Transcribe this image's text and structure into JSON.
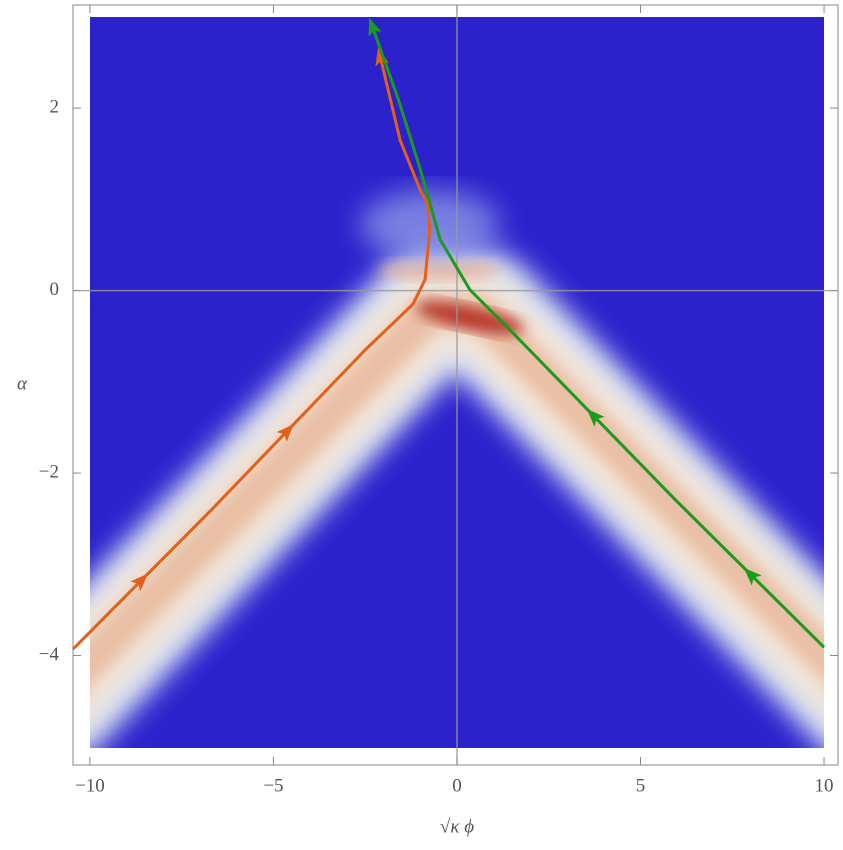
{
  "chart_data": {
    "type": "line",
    "x_label": "√κ ϕ",
    "y_label": "α",
    "xlim": [
      -10.46,
      10.38
    ],
    "ylim": [
      -5.2,
      3.13
    ],
    "xticks": [
      {
        "value": -10,
        "label": "−10"
      },
      {
        "value": -5,
        "label": "−5"
      },
      0,
      5,
      10
    ],
    "yticks": [
      {
        "value": -4,
        "label": "−4"
      },
      {
        "value": -2,
        "label": "−2"
      },
      0,
      2
    ],
    "series": [
      {
        "color": "#e2601a",
        "x": [
          -10.46,
          -6.68,
          -2.5,
          -1.2,
          -0.87,
          -0.74,
          -0.8,
          -1.0,
          -1.55,
          -2.1
        ],
        "values": [
          -3.93,
          -2.4,
          -0.65,
          -0.15,
          0.12,
          0.67,
          0.95,
          1.1,
          1.65,
          2.58
        ]
      },
      {
        "color": "#1c9a1c",
        "x": [
          10.0,
          5.94,
          1.44,
          0.35,
          -0.46,
          -1.0,
          -1.6,
          -2.32
        ],
        "values": [
          -3.91,
          -2.29,
          -0.43,
          0.01,
          0.56,
          1.33,
          2.1,
          2.91
        ]
      }
    ]
  }
}
